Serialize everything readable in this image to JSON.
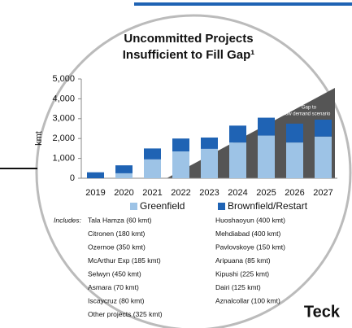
{
  "chart_data": {
    "type": "stacked-bar",
    "title_lines": [
      "Uncommitted Projects",
      "Insufficient to Fill Gap¹"
    ],
    "y_label": "kmt",
    "categories": [
      "2019",
      "2020",
      "2021",
      "2022",
      "2023",
      "2024",
      "2025",
      "2026",
      "2027"
    ],
    "series": [
      {
        "name": "Greenfield",
        "color": "#9dc3e6",
        "values": [
          0,
          250,
          950,
          1350,
          1480,
          1800,
          2150,
          1800,
          2100
        ]
      },
      {
        "name": "Brownfield/Restart",
        "color": "#1f63b4",
        "values": [
          300,
          400,
          550,
          650,
          570,
          850,
          900,
          950,
          850
        ]
      }
    ],
    "ylim": [
      0,
      5000
    ],
    "yticks": [
      0,
      {
        "value": 1000,
        "label": "1,000"
      },
      {
        "value": 2000,
        "label": "2,000"
      },
      {
        "value": 3000,
        "label": "3,000"
      },
      {
        "value": 4000,
        "label": "4,000"
      },
      {
        "value": 5000,
        "label": "5,000"
      }
    ],
    "annotation_lines": [
      "Gap to",
      "low demand scenario"
    ],
    "includes_label": "Includes:",
    "includes_left": [
      "Tala Hamza (60 kmt)",
      "Citronen (180 kmt)",
      "Ozernoe (350 kmt)",
      "McArthur Exp (185 kmt)",
      "Selwyn (450 kmt)",
      "Asmara (70 kmt)",
      "Iscaycruz (80 kmt)",
      "Other projects (325 kmt)"
    ],
    "includes_right": [
      "Huoshaoyun (400 kmt)",
      "Mehdiabad (400 kmt)",
      "Pavlovskoye (150 kmt)",
      "Aripuana (85 kmt)",
      "Kipushi (225 kmt)",
      "Dairi (125 kmt)",
      "Aznalcollar (100 kmt)"
    ],
    "logo": "Teck"
  }
}
